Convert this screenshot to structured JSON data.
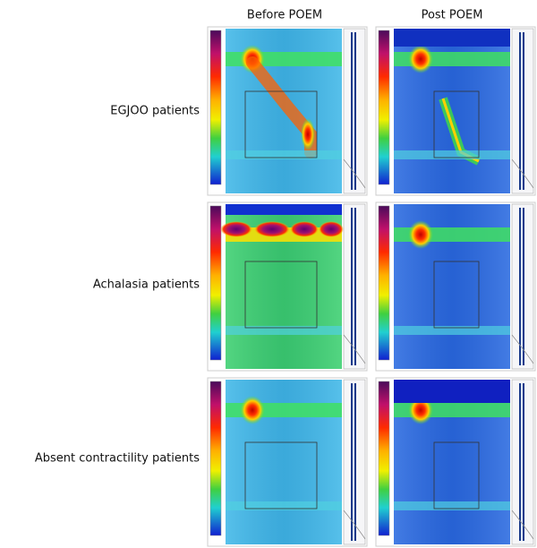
{
  "column_headers": [
    "Before POEM",
    "Post POEM"
  ],
  "row_labels": [
    "EGJOO patients",
    "Achalasia patients",
    "Absent contractility patients"
  ]
}
